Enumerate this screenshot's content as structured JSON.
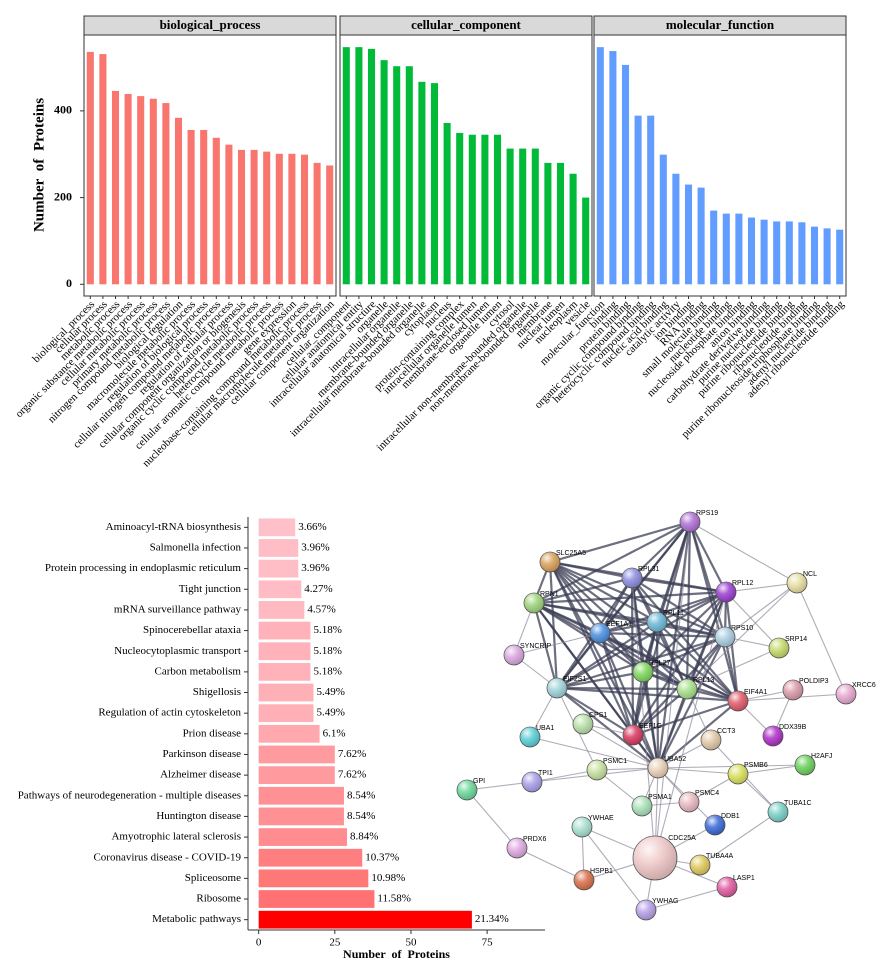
{
  "chart_data": [
    {
      "type": "facet_bar",
      "ylabel": "Number of Proteins",
      "ylim": [
        -27,
        575
      ],
      "yticks": [
        0,
        200,
        400
      ],
      "facets": [
        {
          "title": "biological_process",
          "color": "#F8766D",
          "categories": [
            "biological_process",
            "cellular process",
            "metabolic process",
            "organic substance metabolic process",
            "cellular metabolic process",
            "primary metabolic process",
            "nitrogen compound metabolic process",
            "biological regulation",
            "macromolecule metabolic process",
            "regulation of biological process",
            "cellular nitrogen compound metabolic process",
            "regulation of cellular process",
            "cellular component organization or biogenesis",
            "organic cyclic compound metabolic process",
            "heterocycle metabolic process",
            "cellular aromatic compound metabolic process",
            "gene expression",
            "nucleobase-containing compound metabolic process",
            "cellular macromolecule metabolic process",
            "cellular component organization"
          ],
          "values": [
            536,
            531,
            446,
            439,
            434,
            428,
            418,
            384,
            356,
            356,
            338,
            322,
            310,
            310,
            306,
            301,
            301,
            299,
            280,
            274
          ]
        },
        {
          "title": "cellular_component",
          "color": "#00BA38",
          "categories": [
            "cellular_component",
            "cellular anatomical entity",
            "intracellular anatomical structure",
            "organelle",
            "intracellular organelle",
            "membrane-bounded organelle",
            "intracellular membrane-bounded organelle",
            "cytoplasm",
            "nucleus",
            "protein-containing complex",
            "intracellular organelle lumen",
            "membrane-enclosed lumen",
            "organelle lumen",
            "cytosol",
            "intracellular non-membrane-bounded organelle",
            "non-membrane-bounded organelle",
            "membrane",
            "nuclear lumen",
            "nucleoplasm",
            "vesicle"
          ],
          "values": [
            547,
            547,
            543,
            517,
            503,
            503,
            467,
            464,
            372,
            349,
            345,
            345,
            345,
            313,
            313,
            313,
            280,
            280,
            255,
            200
          ]
        },
        {
          "title": "molecular_function",
          "color": "#619CFF",
          "categories": [
            "molecular_function",
            "binding",
            "protein binding",
            "organic cyclic compound binding",
            "heterocyclic compound binding",
            "nucleic acid binding",
            "catalytic activity",
            "ion binding",
            "RNA binding",
            "small molecule binding",
            "nucleotide binding",
            "nucleoside phosphate binding",
            "anion binding",
            "carbohydrate derivative binding",
            "purine nucleotide binding",
            "purine ribonucleotide binding",
            "ribonucleotide binding",
            "purine ribonucleoside triphosphate binding",
            "adenyl nucleotide binding",
            "adenyl ribonucleotide binding"
          ],
          "values": [
            547,
            538,
            506,
            389,
            389,
            299,
            255,
            230,
            223,
            170,
            163,
            163,
            154,
            149,
            145,
            145,
            143,
            133,
            129,
            126
          ]
        }
      ]
    },
    {
      "type": "barh",
      "xlabel": "Number of Proteins",
      "xlim": [
        -3.5,
        94
      ],
      "xticks": [
        0,
        25,
        50,
        75
      ],
      "categories": [
        "Aminoacyl-tRNA biosynthesis",
        "Salmonella infection",
        "Protein processing in endoplasmic reticulum",
        "Tight junction",
        "mRNA surveillance pathway",
        "Spinocerebellar ataxia",
        "Nucleocytoplasmic transport",
        "Carbon metabolism",
        "Shigellosis",
        "Regulation of actin cytoskeleton",
        "Prion disease",
        "Parkinson disease",
        "Alzheimer disease",
        "Pathways of neurodegeneration - multiple diseases",
        "Huntington disease",
        "Amyotrophic lateral sclerosis",
        "Coronavirus disease - COVID-19",
        "Spliceosome",
        "Ribosome",
        "Metabolic pathways"
      ],
      "values": [
        12,
        13,
        13,
        14,
        15,
        17,
        17,
        17,
        18,
        18,
        20,
        25,
        25,
        28,
        28,
        29,
        34,
        36,
        38,
        70
      ],
      "bar_labels": [
        "3.66%",
        "3.96%",
        "3.96%",
        "4.27%",
        "4.57%",
        "5.18%",
        "5.18%",
        "5.18%",
        "5.49%",
        "5.49%",
        "6.1%",
        "7.62%",
        "7.62%",
        "8.54%",
        "8.54%",
        "8.84%",
        "10.37%",
        "10.98%",
        "11.58%",
        "21.34%"
      ],
      "colors": [
        "#FFC1C9",
        "#FFBEC6",
        "#FFBEC6",
        "#FFBCC4",
        "#FFB9C1",
        "#FFB2BA",
        "#FFB2BA",
        "#FFB2BA",
        "#FFAFB6",
        "#FFAFB6",
        "#FFA9AF",
        "#FF9A9E",
        "#FF9A9E",
        "#FF9093",
        "#FF9093",
        "#FF8D90",
        "#FF7E7F",
        "#FF7878",
        "#FF7172",
        "#FF0000"
      ]
    }
  ],
  "network": {
    "nodes": [
      "RPS19",
      "SLC25A5",
      "RPL31",
      "RPL12",
      "NCL",
      "RPN1",
      "EEF1A1",
      "RPL11",
      "RPS10",
      "SRP14",
      "SYNCRIP",
      "RPL27",
      "EIF2S1",
      "RPL13",
      "EIF4A1",
      "POLDIP3",
      "XRCC6",
      "CPS1",
      "UBA1",
      "EEF1G",
      "CCT3",
      "DDX39B",
      "H2AFJ",
      "UBA52",
      "PSMB6",
      "PSMC1",
      "TPI1",
      "GPI",
      "PSMA1",
      "PSMC4",
      "DDB1",
      "TUBA1C",
      "YWHAE",
      "PRDX6",
      "CDC25A",
      "TUBA4A",
      "HSPB1",
      "LASP1",
      "YWHAG"
    ]
  }
}
